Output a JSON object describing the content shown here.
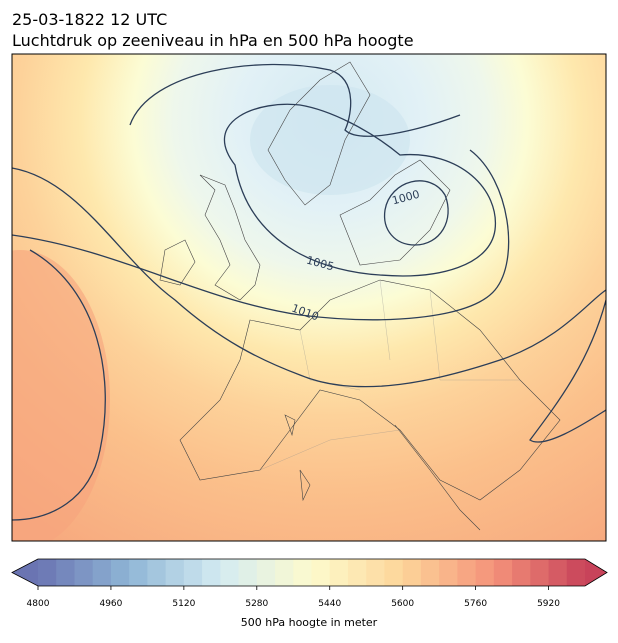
{
  "title": [
    "25-03-1822 12 UTC",
    "Luchtdruk op zeeniveau in hPa en 500 hPa hoogte"
  ],
  "contour_labels": [
    1000,
    1005,
    1010
  ],
  "colorbar": {
    "label": "500 hPa hoogte in meter",
    "lim": [
      4800,
      6000
    ],
    "ticks": [
      4800,
      4960,
      5120,
      5280,
      5440,
      5600,
      5760,
      5920
    ],
    "colors": [
      "#6a74b2",
      "#8fb6d6",
      "#d4ebf2",
      "#fdfbcd",
      "#fdd599",
      "#f4927a",
      "#c8435a"
    ]
  }
}
